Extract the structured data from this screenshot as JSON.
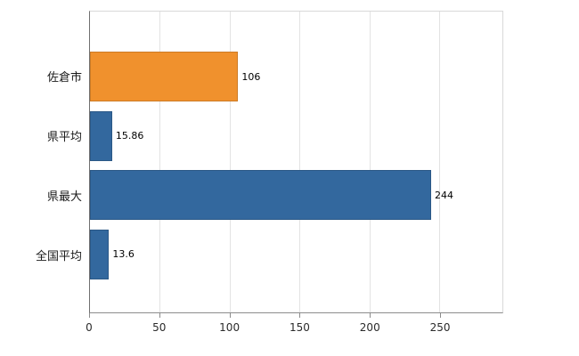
{
  "chart_data": {
    "type": "bar",
    "orientation": "horizontal",
    "title": "",
    "xlabel": "",
    "ylabel": "",
    "categories": [
      "佐倉市",
      "県平均",
      "県最大",
      "全国平均"
    ],
    "values": [
      106,
      15.86,
      244,
      13.6
    ],
    "value_labels": [
      "106",
      "15.86",
      "244",
      "13.6"
    ],
    "bar_colors": [
      "#F0912D",
      "#33689E",
      "#33689E",
      "#33689E"
    ],
    "x_ticks": [
      0,
      50,
      100,
      150,
      200,
      250
    ],
    "xlim": [
      0,
      295
    ],
    "grid": true,
    "legend": "none",
    "plot_background": "#ffffff",
    "gridline_color": "#e3e3e3"
  }
}
